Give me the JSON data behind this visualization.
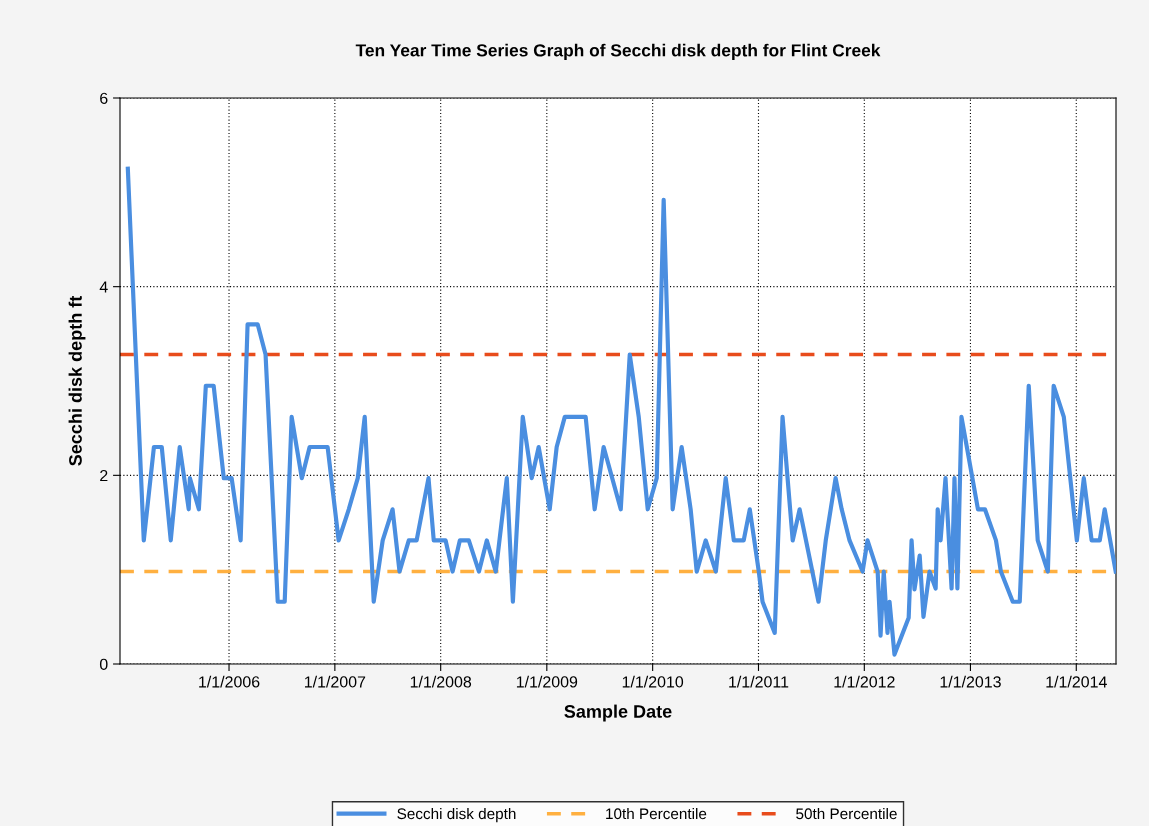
{
  "chart_data": {
    "type": "line",
    "title": "Ten Year Time Series Graph of Secchi disk depth for Flint Creek",
    "xlabel": "Sample Date",
    "ylabel": "Secchi disk depth ft",
    "xlim": [
      "2004-12-21",
      "2014-05-18"
    ],
    "ylim": [
      0,
      6
    ],
    "yticks": [
      0,
      2,
      4,
      6
    ],
    "xticks": [
      {
        "value": "2006-01-01",
        "label": "1/1/2006"
      },
      {
        "value": "2007-01-01",
        "label": "1/1/2007"
      },
      {
        "value": "2008-01-01",
        "label": "1/1/2008"
      },
      {
        "value": "2009-01-01",
        "label": "1/1/2009"
      },
      {
        "value": "2010-01-01",
        "label": "1/1/2010"
      },
      {
        "value": "2011-01-01",
        "label": "1/1/2011"
      },
      {
        "value": "2012-01-01",
        "label": "1/1/2012"
      },
      {
        "value": "2013-01-01",
        "label": "1/1/2013"
      },
      {
        "value": "2014-01-01",
        "label": "1/1/2014"
      }
    ],
    "grid": true,
    "legend": "bottom",
    "marker": "none",
    "line_style": "solid",
    "series": [
      {
        "name": "Secchi disk depth",
        "color": "#4a8ee0",
        "x": [
          "2005-01-17",
          "2005-03-13",
          "2005-04-17",
          "2005-05-14",
          "2005-06-14",
          "2005-07-15",
          "2005-08-15",
          "2005-08-19",
          "2005-09-19",
          "2005-10-13",
          "2005-11-09",
          "2005-12-14",
          "2006-01-10",
          "2006-02-10",
          "2006-03-06",
          "2006-04-10",
          "2006-05-07",
          "2006-06-18",
          "2006-07-12",
          "2006-08-05",
          "2006-09-09",
          "2006-10-06",
          "2006-12-07",
          "2007-01-14",
          "2007-02-18",
          "2007-03-21",
          "2007-04-14",
          "2007-05-15",
          "2007-06-15",
          "2007-07-19",
          "2007-08-12",
          "2007-09-13",
          "2007-10-10",
          "2007-11-20",
          "2007-12-08",
          "2008-01-18",
          "2008-02-11",
          "2008-03-07",
          "2008-04-07",
          "2008-05-12",
          "2008-06-08",
          "2008-07-09",
          "2008-08-16",
          "2008-09-06",
          "2008-10-10",
          "2008-11-10",
          "2008-12-04",
          "2009-01-11",
          "2009-02-04",
          "2009-03-04",
          "2009-05-15",
          "2009-06-15",
          "2009-07-16",
          "2009-09-13",
          "2009-10-14",
          "2009-11-14",
          "2009-12-15",
          "2010-01-15",
          "2010-02-08",
          "2010-03-11",
          "2010-04-11",
          "2010-05-12",
          "2010-06-02",
          "2010-07-03",
          "2010-08-07",
          "2010-09-10",
          "2010-10-08",
          "2010-11-11",
          "2010-12-02",
          "2011-01-02",
          "2011-01-15",
          "2011-02-26",
          "2011-03-25",
          "2011-04-29",
          "2011-05-23",
          "2011-07-27",
          "2011-08-21",
          "2011-09-24",
          "2011-10-15",
          "2011-11-11",
          "2011-12-26",
          "2012-01-12",
          "2012-02-16",
          "2012-02-26",
          "2012-03-08",
          "2012-03-21",
          "2012-03-28",
          "2012-04-14",
          "2012-06-02",
          "2012-06-12",
          "2012-06-22",
          "2012-07-10",
          "2012-07-23",
          "2012-08-13",
          "2012-09-03",
          "2012-09-10",
          "2012-09-20",
          "2012-10-07",
          "2012-10-28",
          "2012-11-07",
          "2012-11-17",
          "2012-12-01",
          "2013-01-27",
          "2013-02-20",
          "2013-03-30",
          "2013-04-16",
          "2013-05-27",
          "2013-06-20",
          "2013-07-21",
          "2013-08-21",
          "2013-09-25",
          "2013-10-15",
          "2013-11-19",
          "2014-01-03",
          "2014-01-27",
          "2014-02-23",
          "2014-03-23",
          "2014-04-09",
          "2014-05-17"
        ],
        "values": [
          5.25,
          1.31,
          2.3,
          2.3,
          1.31,
          2.3,
          1.64,
          1.97,
          1.64,
          2.95,
          2.95,
          1.97,
          1.97,
          1.31,
          3.6,
          3.6,
          3.28,
          0.66,
          0.66,
          2.62,
          1.97,
          2.3,
          2.3,
          1.31,
          1.64,
          1.97,
          2.62,
          0.66,
          1.31,
          1.64,
          0.98,
          1.31,
          1.31,
          1.97,
          1.31,
          1.31,
          0.98,
          1.31,
          1.31,
          0.98,
          1.31,
          0.98,
          1.97,
          0.66,
          2.62,
          1.97,
          2.3,
          1.64,
          2.3,
          2.62,
          2.62,
          1.64,
          2.3,
          1.64,
          3.28,
          2.62,
          1.64,
          1.97,
          4.92,
          1.64,
          2.3,
          1.64,
          0.98,
          1.31,
          0.98,
          1.97,
          1.31,
          1.31,
          1.64,
          0.98,
          0.66,
          0.33,
          2.62,
          1.31,
          1.64,
          0.66,
          1.31,
          1.97,
          1.64,
          1.31,
          0.98,
          1.31,
          0.98,
          0.3,
          0.98,
          0.33,
          0.66,
          0.1,
          0.49,
          1.31,
          0.79,
          1.15,
          0.5,
          0.98,
          0.8,
          1.64,
          1.31,
          1.97,
          0.8,
          1.97,
          0.8,
          2.62,
          1.64,
          1.64,
          1.31,
          0.98,
          0.66,
          0.66,
          2.95,
          1.31,
          0.98,
          2.95,
          2.62,
          1.31,
          1.97,
          1.31,
          1.31,
          1.64,
          0.98
        ]
      }
    ],
    "ref_lines": [
      {
        "axis": "y",
        "value": 0.98,
        "label": "10th Percentile",
        "color": "#ffb040",
        "line_style": "dashed"
      },
      {
        "axis": "y",
        "value": 3.28,
        "label": "50th Percentile",
        "color": "#e84c1c",
        "line_style": "dashed"
      }
    ]
  }
}
